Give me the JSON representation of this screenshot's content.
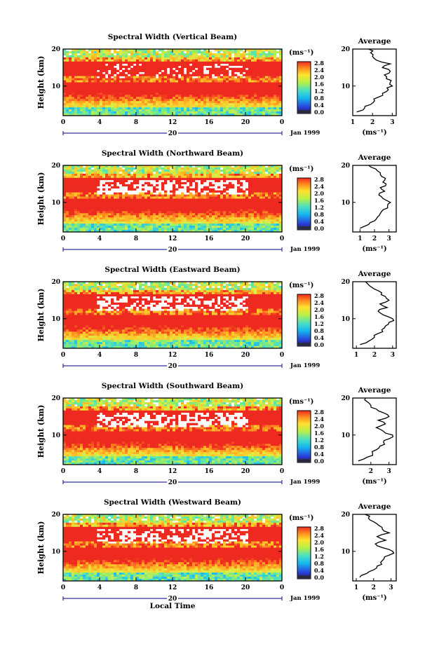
{
  "chart_data": [
    {
      "type": "heatmap",
      "title": "Spectral Width (Vertical Beam)",
      "ylabel": "Height (km)",
      "x_ticks": [
        "0",
        "4",
        "8",
        "12",
        "16",
        "20",
        "0"
      ],
      "y_ticks": [
        "10",
        "20"
      ],
      "xlim": [
        0,
        24
      ],
      "ylim": [
        2,
        20
      ],
      "day_label": "20",
      "date_label": "Jan 1999",
      "colorbar": {
        "unit": "(ms⁻¹)",
        "ticks": [
          "0.0",
          "0.4",
          "0.8",
          "1.2",
          "1.6",
          "2.0",
          "2.4",
          "2.8"
        ]
      },
      "average_profile": {
        "title": "Average",
        "x_ticks": [
          "1",
          "2",
          "3"
        ],
        "y_ticks": [
          "10",
          "20"
        ],
        "xlabel": "(ms⁻¹)",
        "xlim": [
          1,
          3.2
        ],
        "height_km": [
          3,
          4,
          5,
          6,
          7,
          8,
          9,
          10,
          11,
          12,
          13,
          14,
          15,
          16,
          17,
          18,
          19,
          20
        ],
        "width_ms": [
          1.2,
          1.6,
          1.9,
          2.1,
          2.3,
          2.5,
          2.8,
          3.0,
          2.9,
          2.7,
          2.6,
          2.9,
          2.5,
          2.9,
          2.2,
          2.0,
          1.9,
          1.8
        ]
      }
    },
    {
      "type": "heatmap",
      "title": "Spectral Width (Northward Beam)",
      "ylabel": "Height (km)",
      "x_ticks": [
        "0",
        "4",
        "8",
        "12",
        "16",
        "20",
        "0"
      ],
      "y_ticks": [
        "10",
        "20"
      ],
      "xlim": [
        0,
        24
      ],
      "ylim": [
        2,
        20
      ],
      "day_label": "20",
      "date_label": "Jan 1999",
      "colorbar": {
        "unit": "(ms⁻¹)",
        "ticks": [
          "0.0",
          "0.4",
          "0.8",
          "1.2",
          "1.6",
          "2.0",
          "2.4",
          "2.8"
        ]
      },
      "average_profile": {
        "title": "Average",
        "x_ticks": [
          "1",
          "2",
          "3"
        ],
        "y_ticks": [
          "10",
          "20"
        ],
        "xlabel": "(ms⁻¹)",
        "xlim": [
          0.5,
          3.5
        ],
        "height_km": [
          3,
          4,
          5,
          6,
          7,
          8,
          9,
          10,
          11,
          12,
          13,
          14,
          15,
          16,
          17,
          18,
          19,
          20
        ],
        "width_ms": [
          1.0,
          1.6,
          2.0,
          2.2,
          2.4,
          2.6,
          2.9,
          3.1,
          2.6,
          2.3,
          2.7,
          2.4,
          2.8,
          2.7,
          2.5,
          2.4,
          2.1,
          1.6
        ]
      }
    },
    {
      "type": "heatmap",
      "title": "Spectral Width (Eastward Beam)",
      "ylabel": "Height (km)",
      "x_ticks": [
        "0",
        "4",
        "8",
        "12",
        "16",
        "20",
        "0"
      ],
      "y_ticks": [
        "10",
        "20"
      ],
      "xlim": [
        0,
        24
      ],
      "ylim": [
        2,
        20
      ],
      "day_label": "20",
      "date_label": "Jan 1999",
      "colorbar": {
        "unit": "(ms⁻¹)",
        "ticks": [
          "0.0",
          "0.4",
          "0.8",
          "1.2",
          "1.6",
          "2.0",
          "2.4",
          "2.8"
        ]
      },
      "average_profile": {
        "title": "Average",
        "x_ticks": [
          "1",
          "2",
          "3"
        ],
        "y_ticks": [
          "10",
          "20"
        ],
        "xlabel": "",
        "xlim": [
          0.8,
          3.2
        ],
        "height_km": [
          3,
          4,
          5,
          6,
          7,
          8,
          9,
          10,
          11,
          12,
          13,
          14,
          15,
          16,
          17,
          18,
          19,
          20
        ],
        "width_ms": [
          1.2,
          1.7,
          2.0,
          2.2,
          2.4,
          2.6,
          2.8,
          3.0,
          2.5,
          2.2,
          2.7,
          2.3,
          2.8,
          2.6,
          2.4,
          2.0,
          1.7,
          1.5
        ]
      }
    },
    {
      "type": "heatmap",
      "title": "Spectral Width (Southward Beam)",
      "ylabel": "Height (km)",
      "x_ticks": [
        "0",
        "4",
        "8",
        "12",
        "16",
        "20",
        "0"
      ],
      "y_ticks": [
        "10",
        "20"
      ],
      "xlim": [
        0,
        24
      ],
      "ylim": [
        2,
        20
      ],
      "day_label": "20",
      "date_label": "Jan 1999",
      "colorbar": {
        "unit": "(ms⁻¹)",
        "ticks": [
          "0.0",
          "0.4",
          "0.8",
          "1.2",
          "1.6",
          "2.0",
          "2.4",
          "2.8"
        ]
      },
      "average_profile": {
        "title": "Average",
        "x_ticks": [
          "2",
          "3"
        ],
        "y_ticks": [
          "10",
          "20"
        ],
        "xlabel": "(ms⁻¹)",
        "xlim": [
          1,
          3.4
        ],
        "height_km": [
          3,
          4,
          5,
          6,
          7,
          8,
          9,
          10,
          11,
          12,
          13,
          14,
          15,
          16,
          17,
          18,
          19,
          20
        ],
        "width_ms": [
          1.3,
          1.8,
          2.1,
          2.3,
          2.5,
          2.7,
          3.0,
          3.2,
          2.7,
          2.3,
          2.8,
          2.4,
          3.0,
          2.7,
          2.3,
          2.0,
          1.8,
          1.7
        ]
      }
    },
    {
      "type": "heatmap",
      "title": "Spectral Width (Westward Beam)",
      "ylabel": "Height (km)",
      "x_ticks": [
        "0",
        "4",
        "8",
        "12",
        "16",
        "20",
        "0"
      ],
      "y_ticks": [
        "10",
        "20"
      ],
      "xlim": [
        0,
        24
      ],
      "ylim": [
        2,
        20
      ],
      "day_label": "20",
      "date_label": "Jan 1999",
      "x_axis_label": "Local Time",
      "colorbar": {
        "unit": "(ms⁻¹)",
        "ticks": [
          "0.0",
          "0.4",
          "0.8",
          "1.2",
          "1.6",
          "2.0",
          "2.4",
          "2.8"
        ]
      },
      "average_profile": {
        "title": "Average",
        "x_ticks": [
          "1",
          "2",
          "3"
        ],
        "y_ticks": [
          "10",
          "20"
        ],
        "xlabel": "(ms⁻¹)",
        "xlim": [
          0.8,
          3.3
        ],
        "height_km": [
          3,
          4,
          5,
          6,
          7,
          8,
          9,
          10,
          11,
          12,
          13,
          14,
          15,
          16,
          17,
          18,
          19,
          20
        ],
        "width_ms": [
          1.2,
          1.6,
          2.0,
          2.2,
          2.4,
          2.6,
          2.9,
          3.1,
          2.5,
          2.1,
          2.7,
          2.2,
          2.9,
          2.5,
          2.3,
          2.0,
          1.7,
          1.5
        ]
      }
    }
  ]
}
